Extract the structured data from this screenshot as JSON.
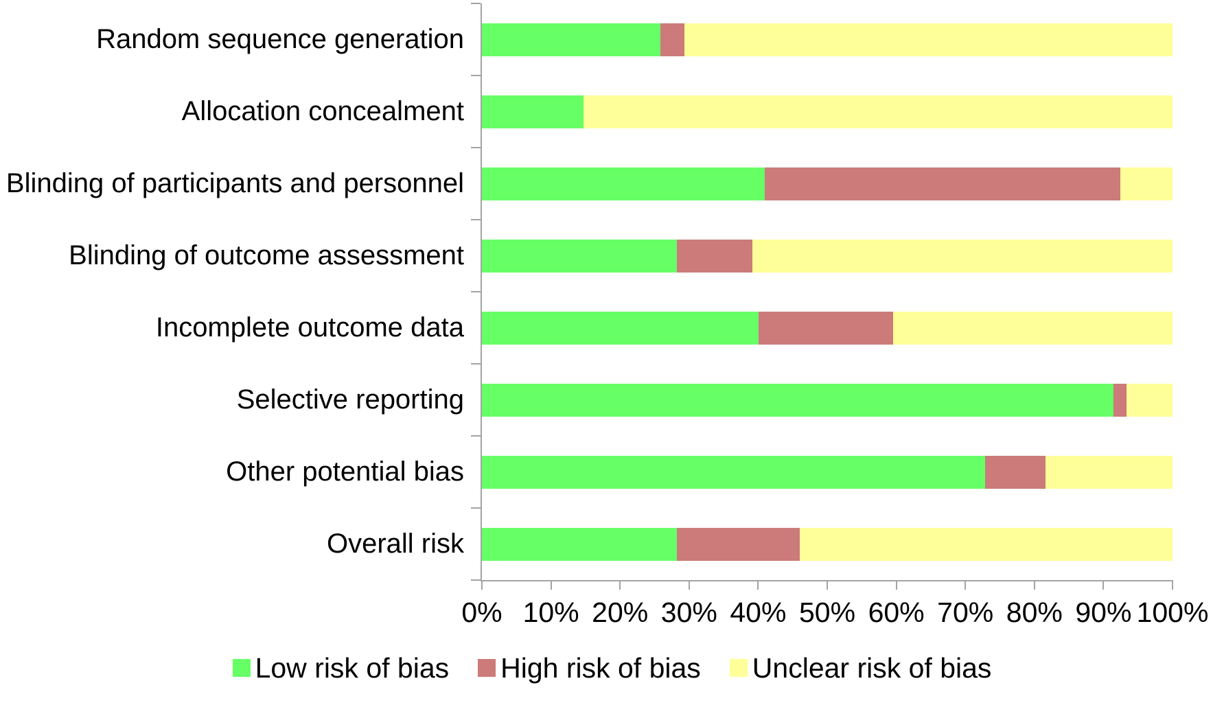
{
  "chart_data": {
    "type": "bar",
    "orientation": "horizontal",
    "stacked": true,
    "title": "",
    "xlabel": "",
    "ylabel": "",
    "xlim": [
      0,
      100
    ],
    "grid": false,
    "legend_position": "bottom",
    "axis_color": "#a3a3a3",
    "categories": [
      "Random sequence generation",
      "Allocation concealment",
      "Blinding of participants and personnel",
      "Blinding of outcome assessment",
      "Incomplete outcome data",
      "Selective reporting",
      "Other potential bias",
      "Overall risk"
    ],
    "series": [
      {
        "name": "Low risk of bias",
        "color": "#66FF66",
        "values": [
          25.8,
          14.7,
          41.0,
          28.2,
          40.1,
          91.5,
          72.9,
          28.2
        ]
      },
      {
        "name": "High risk of bias",
        "color": "#CC7A7A",
        "values": [
          3.5,
          0,
          51.4,
          11.0,
          19.4,
          1.8,
          8.7,
          17.8
        ]
      },
      {
        "name": "Unclear risk of bias",
        "color": "#FFFF99",
        "values": [
          70.7,
          85.3,
          7.6,
          60.8,
          40.5,
          6.7,
          18.4,
          54.0
        ]
      }
    ],
    "x_ticks": [
      "0%",
      "10%",
      "20%",
      "30%",
      "40%",
      "50%",
      "60%",
      "70%",
      "80%",
      "90%",
      "100%"
    ]
  }
}
